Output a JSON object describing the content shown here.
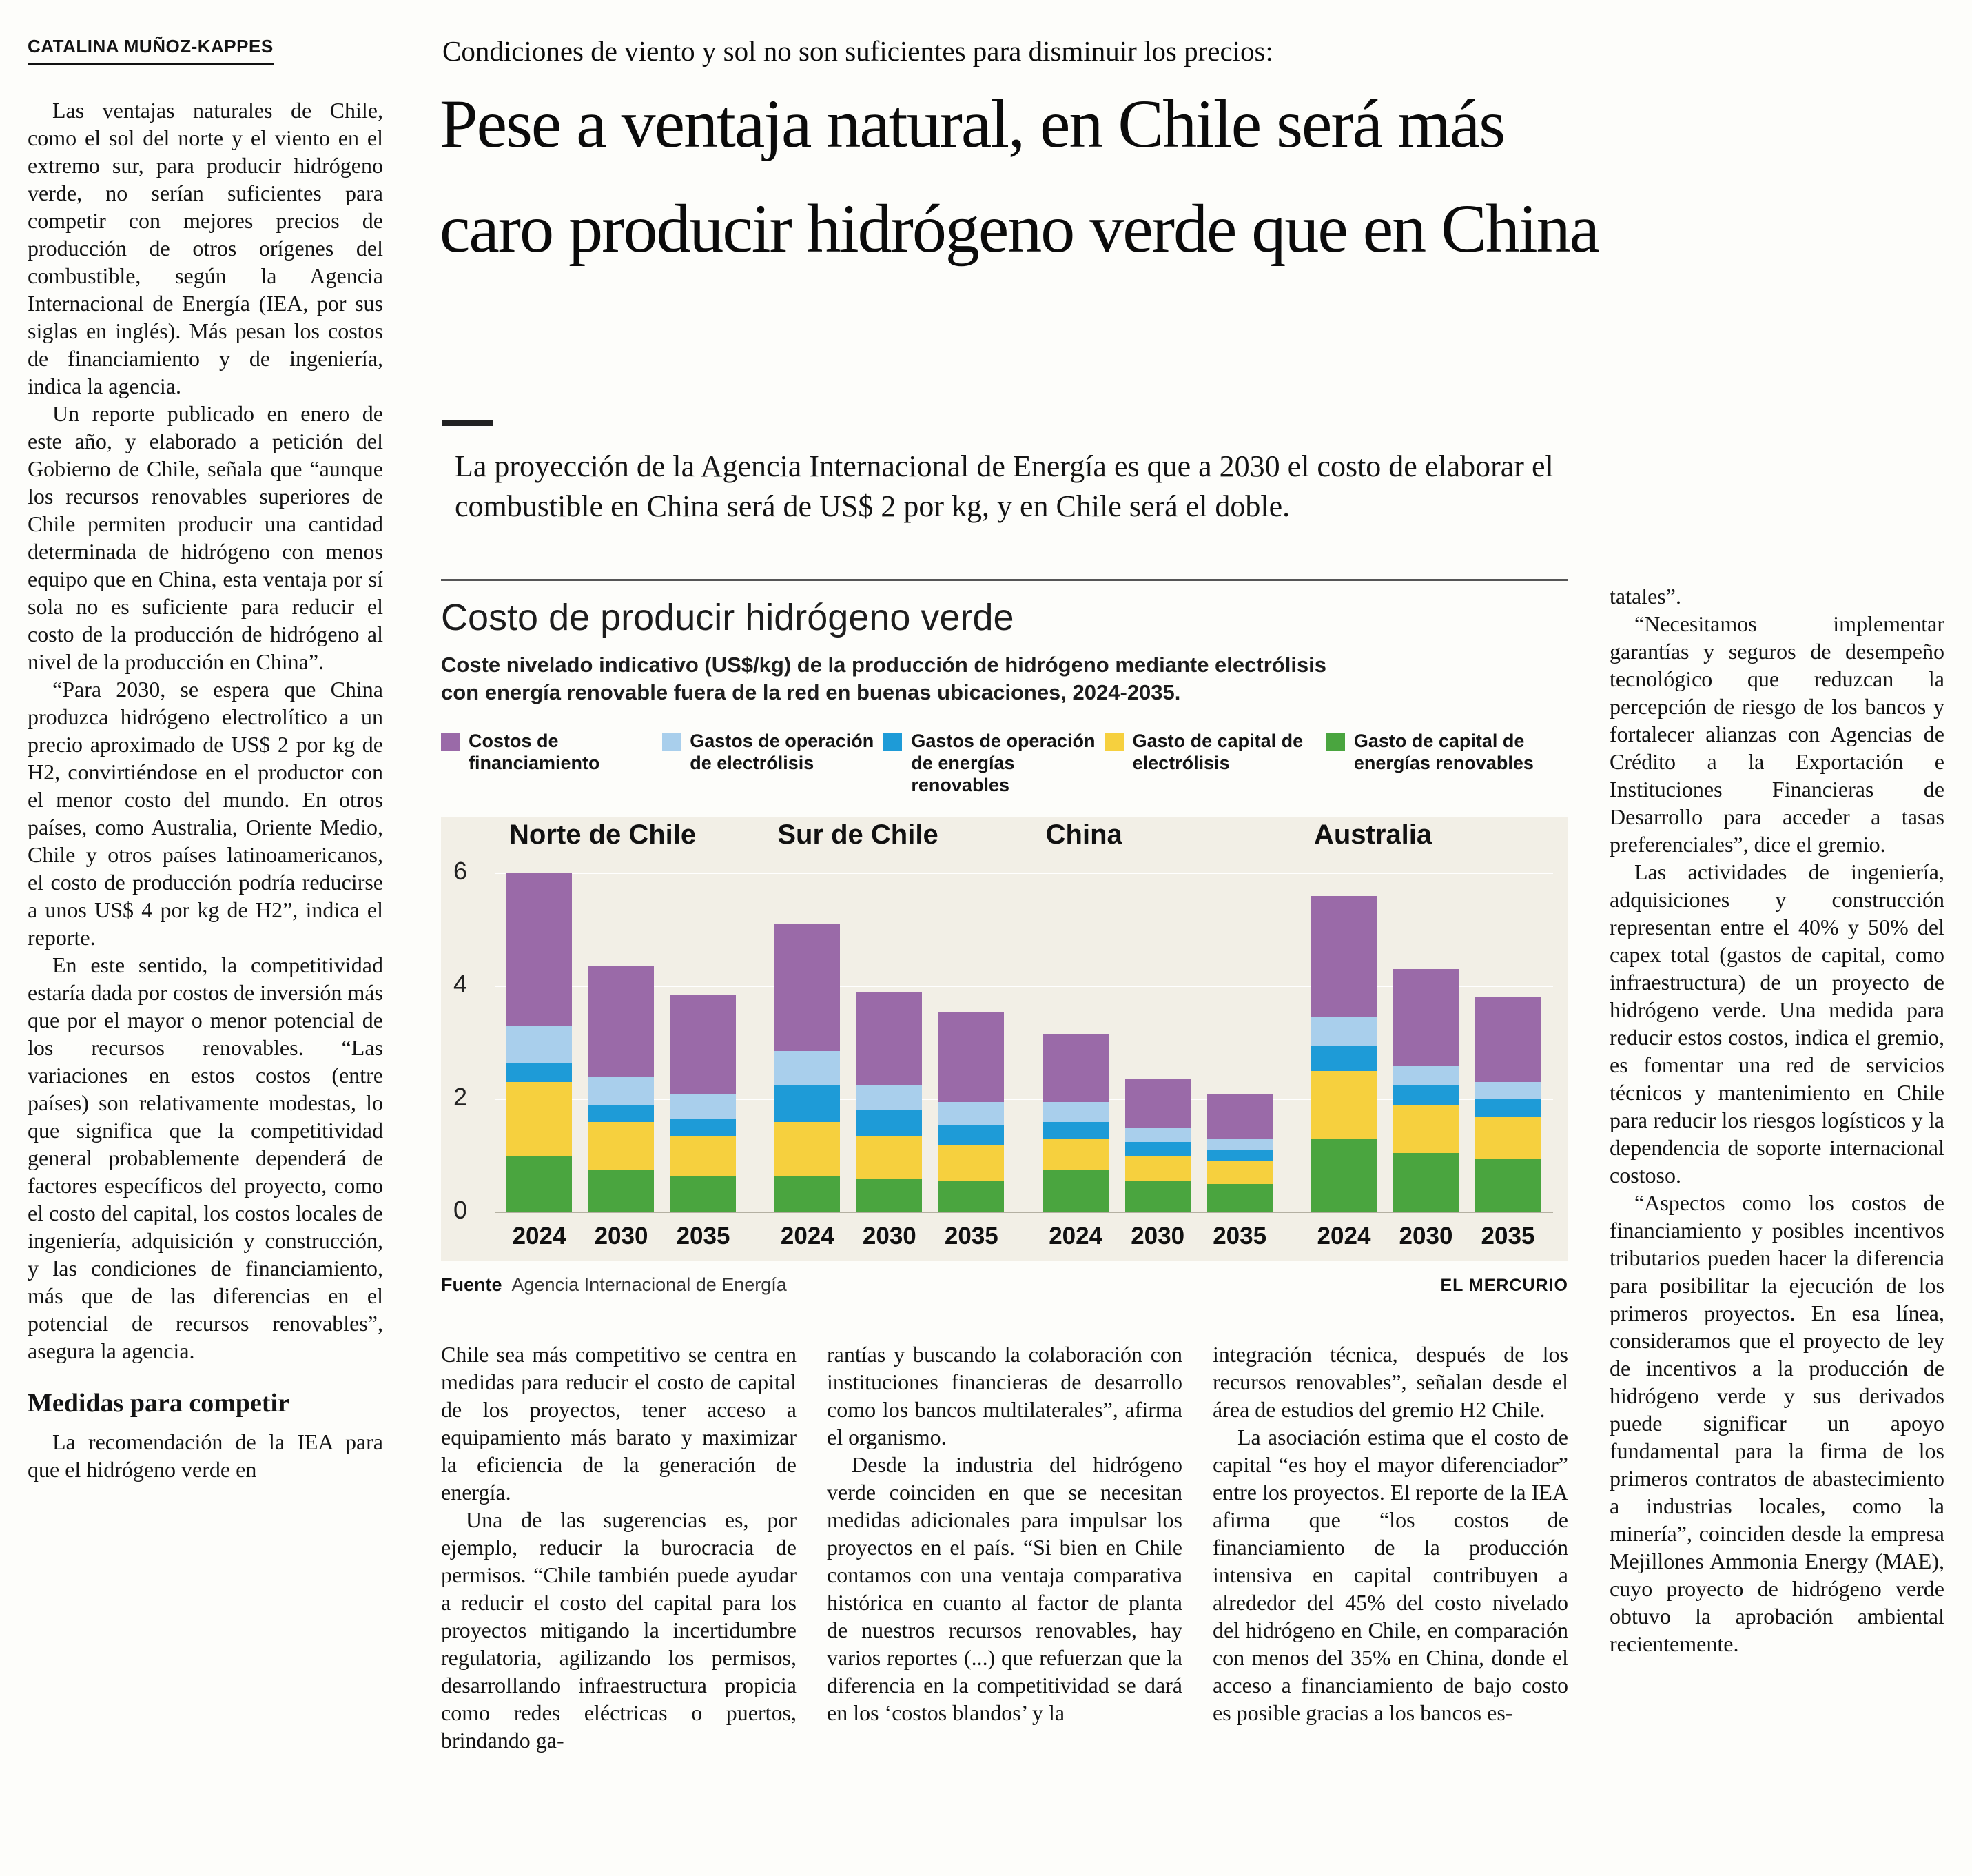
{
  "byline": "CATALINA MUÑOZ-KAPPES",
  "kicker": "Condiciones de viento y sol no son suficientes para disminuir los precios:",
  "headline": "Pese a ventaja natural, en Chile será más caro producir hidrógeno verde que en China",
  "deck": "La proyección de la Agencia Internacional de Energía es que a 2030 el costo de elaborar el combustible en China será de US$ 2 por kg, y en Chile será el doble.",
  "left_column": {
    "paragraphs": [
      "Las ventajas naturales de Chile, como el sol del norte y el viento en el extremo sur, para producir hidrógeno verde, no serían suficientes para competir con mejores precios de producción de otros orígenes del combustible, según la Agencia Internacional de Energía (IEA, por sus siglas en inglés). Más pesan los costos de financiamiento y de ingeniería, indica la agencia.",
      "Un reporte publicado en enero de este año, y elaborado a petición del Gobierno de Chile, señala que “aunque los recursos renovables superiores de Chile permiten producir una cantidad determinada de hidrógeno con menos equipo que en China, esta ventaja por sí sola no es suficiente para reducir el costo de la producción de hidrógeno al nivel de la producción en China”.",
      "“Para 2030, se espera que China produzca hidrógeno electrolítico a un precio aproximado de US$ 2 por kg de H2, convirtiéndose en el productor con el menor costo del mundo. En otros países, como Australia, Oriente Medio, Chile y otros países latinoamericanos, el costo de producción podría reducirse a unos US$ 4 por kg de H2”, indica el reporte.",
      "En este sentido, la competitividad estaría dada por costos de inversión más que por el mayor o menor potencial de los recursos renovables. “Las variaciones en estos costos (entre países) son relativamente modestas, lo que significa que la competitividad general probablemente dependerá de factores específicos del proyecto, como el costo del capital, los costos locales de ingeniería, adquisición y construcción, y las condiciones de financiamiento, más que de las diferencias en el potencial de recursos renovables”, asegura la agencia."
    ],
    "subhead": "Medidas para competir",
    "after_subhead": [
      "La recomendación de la IEA para que el hidrógeno verde en"
    ]
  },
  "columns": {
    "col1": [
      "Chile sea más competitivo se centra en medidas para reducir el costo de capital de los proyectos, tener acceso a equipamiento más barato y maximizar la eficiencia de la generación de energía.",
      "Una de las sugerencias es, por ejemplo, reducir la burocracia de permisos. “Chile también puede ayudar a reducir el costo del capital para los proyectos mitigando la incertidumbre regulatoria, agilizando los permisos, desarrollando infraestructura propicia como redes eléctricas o puertos, brindando ga-"
    ],
    "col2": [
      "rantías y buscando la colaboración con instituciones financieras de desarrollo como los bancos multilaterales”, afirma el organismo.",
      "Desde la industria del hidrógeno verde coinciden en que se necesitan medidas adicionales para impulsar los proyectos en el país. “Si bien en Chile contamos con una ventaja comparativa histórica en cuanto al factor de planta de nuestros recursos renovables, hay varios reportes (...) que refuerzan que la diferencia en la competitividad se dará en los ‘costos blandos’ y la"
    ],
    "col3": [
      "integración técnica, después de los recursos renovables”, señalan desde el área de estudios del gremio H2 Chile.",
      "La asociación estima que el costo de capital “es hoy el mayor diferenciador” entre los proyectos. El reporte de la IEA afirma que “los costos de financiamiento de la producción intensiva en capital contribuyen a alrededor del 45% del costo nivelado del hidrógeno en Chile, en comparación con menos del 35% en China, donde el acceso a financiamiento de bajo costo es posible gracias a los bancos es-"
    ]
  },
  "right_column": [
    "tatales”.",
    "“Necesitamos implementar garantías y seguros de desempeño tecnológico que reduzcan la percepción de riesgo de los bancos y fortalecer alianzas con Agencias de Crédito a la Exportación e Instituciones Financieras de Desarrollo para acceder a tasas preferenciales”, dice el gremio.",
    "Las actividades de ingeniería, adquisiciones y construcción representan entre el 40% y 50% del capex total (gastos de capital, como infraestructura) de un proyecto de hidrógeno verde. Una medida para reducir estos costos, indica el gremio, es fomentar una red de servicios técnicos y mantenimiento en Chile para reducir los riesgos logísticos y la dependencia de soporte internacional costoso.",
    "“Aspectos como los costos de financiamiento y posibles incentivos tributarios pueden hacer la diferencia para posibilitar la ejecución de los primeros proyectos. En esa línea, consideramos que el proyecto de ley de incentivos a la producción de hidrógeno verde y sus derivados puede significar un apoyo fundamental para la firma de los primeros contratos de abastecimiento a industrias locales, como la minería”, coinciden desde la empresa Mejillones Ammonia Energy (MAE), cuyo proyecto de hidrógeno verde obtuvo la aprobación ambiental recientemente."
  ],
  "chart": {
    "title": "Costo de producir hidrógeno verde",
    "subtitle": "Coste nivelado indicativo (US$/kg) de la producción de hidrógeno mediante electrólisis con energía renovable fuera de la red en buenas ubicaciones, 2024-2035.",
    "source_label": "Fuente",
    "source": "Agencia Internacional de Energía",
    "credit": "EL MERCURIO",
    "panel_background": "#f2efe6",
    "legend": [
      {
        "label": "Costos de financiamiento",
        "color": "#9a6aa8"
      },
      {
        "label": "Gastos de operación de electrólisis",
        "color": "#a9cfec"
      },
      {
        "label": "Gastos de operación de energías renovables",
        "color": "#1e9bd7"
      },
      {
        "label": "Gasto de capital de electrólisis",
        "color": "#f6d03e"
      },
      {
        "label": "Gasto de capital de energías renovables",
        "color": "#4aa53f"
      }
    ]
  },
  "chart_data": {
    "type": "bar",
    "stacked": true,
    "unit": "US$/kg",
    "title": "Costo de producir hidrógeno verde",
    "groups": [
      "Norte de Chile",
      "Sur de Chile",
      "China",
      "Australia"
    ],
    "x": [
      "2024",
      "2030",
      "2035"
    ],
    "ylim": [
      0,
      6
    ],
    "yticks": [
      0,
      2,
      4,
      6
    ],
    "value_order": "Norte2024,Norte2030,Norte2035,Sur2024,Sur2030,Sur2035,China2024,China2030,China2035,Australia2024,Australia2030,Australia2035",
    "series": [
      {
        "name": "Gasto de capital de energías renovables",
        "color": "#4aa53f",
        "values": [
          1.0,
          0.75,
          0.65,
          0.65,
          0.6,
          0.55,
          0.75,
          0.55,
          0.5,
          1.3,
          1.05,
          0.95
        ]
      },
      {
        "name": "Gasto de capital de electrólisis",
        "color": "#f6d03e",
        "values": [
          1.3,
          0.85,
          0.7,
          0.95,
          0.75,
          0.65,
          0.55,
          0.45,
          0.4,
          1.2,
          0.85,
          0.75
        ]
      },
      {
        "name": "Gastos de operación de energías renovables",
        "color": "#1e9bd7",
        "values": [
          0.35,
          0.3,
          0.3,
          0.65,
          0.45,
          0.35,
          0.3,
          0.25,
          0.2,
          0.45,
          0.35,
          0.3
        ]
      },
      {
        "name": "Gastos de operación de electrólisis",
        "color": "#a9cfec",
        "values": [
          0.65,
          0.5,
          0.45,
          0.6,
          0.45,
          0.4,
          0.35,
          0.25,
          0.2,
          0.5,
          0.35,
          0.3
        ]
      },
      {
        "name": "Costos de financiamiento",
        "color": "#9a6aa8",
        "values": [
          2.7,
          1.95,
          1.75,
          2.25,
          1.65,
          1.6,
          1.2,
          0.85,
          0.8,
          2.15,
          1.7,
          1.5
        ]
      }
    ],
    "totals": [
      6.0,
      4.35,
      3.85,
      5.1,
      3.9,
      3.55,
      3.15,
      2.35,
      2.1,
      5.6,
      4.3,
      3.8
    ]
  }
}
